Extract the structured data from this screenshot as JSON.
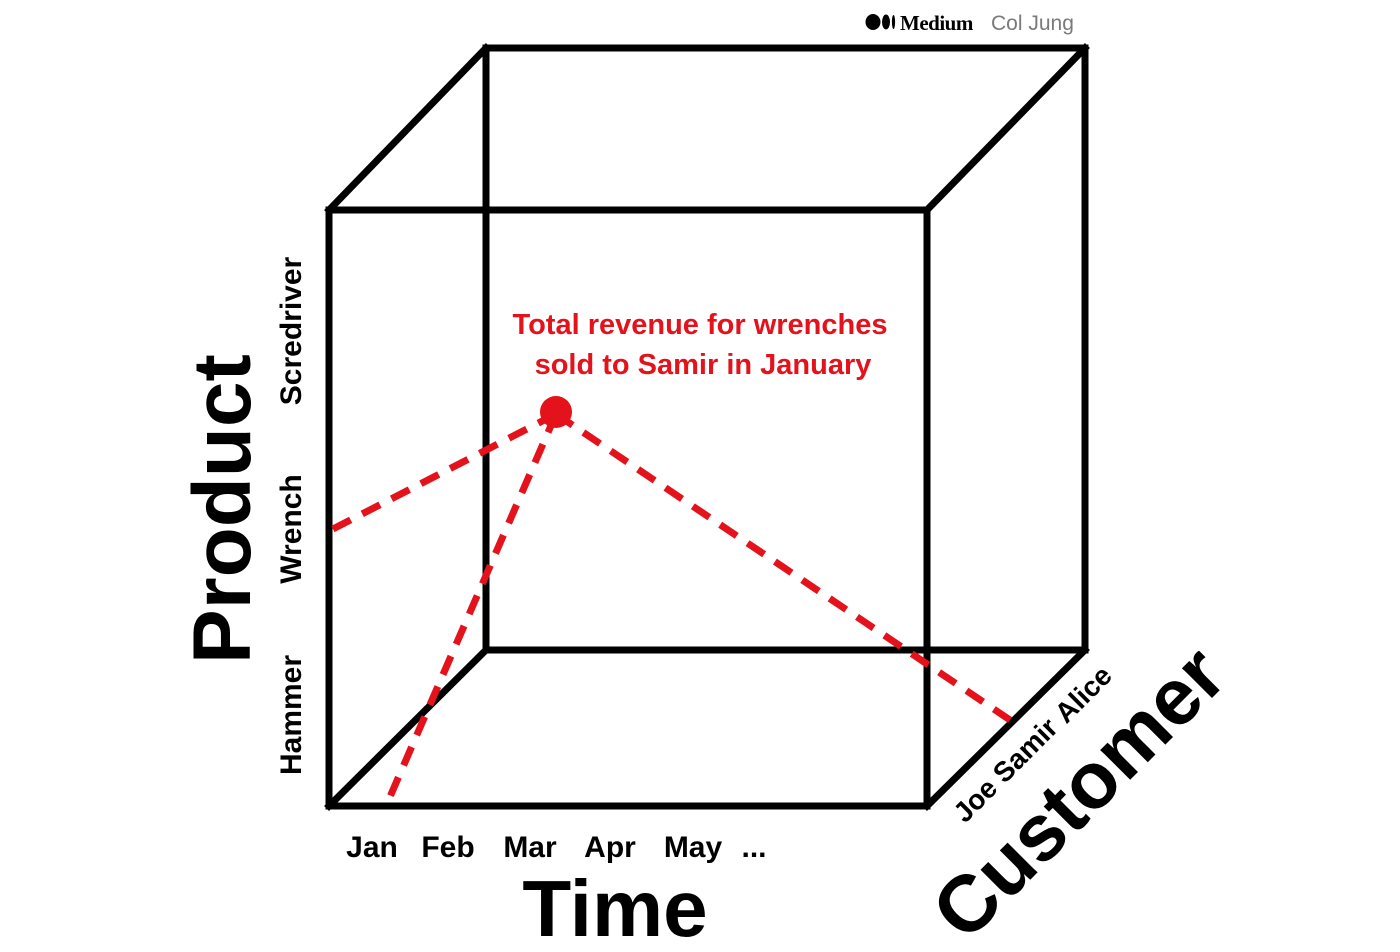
{
  "branding": {
    "publisher": "Medium",
    "author": "Col Jung"
  },
  "annotation": {
    "line1": "Total revenue for wrenches",
    "line2": "sold to Samir in January"
  },
  "axes": {
    "product": {
      "title": "Product",
      "ticks": [
        "Hammer",
        "Wrench",
        "Scredriver"
      ]
    },
    "time": {
      "title": "Time",
      "ticks": [
        "Jan",
        "Feb",
        "Mar",
        "Apr",
        "May",
        "..."
      ]
    },
    "customer": {
      "title": "Customer",
      "ticks": [
        "Joe",
        "Samir",
        "Alice"
      ]
    }
  },
  "colors": {
    "cube_edges": "#000000",
    "highlight": "#e3121b",
    "brand_gray": "#7a7a7a"
  }
}
